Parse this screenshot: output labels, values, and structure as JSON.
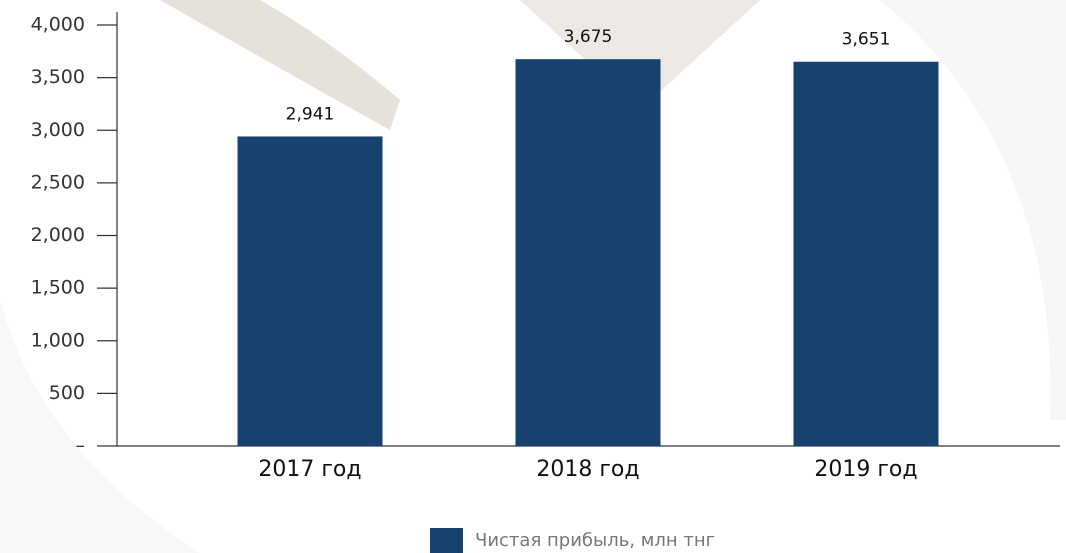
{
  "chart_data": {
    "type": "bar",
    "categories": [
      "2017 год",
      "2018 год",
      "2019 год"
    ],
    "series": [
      {
        "name": "Чистая прибыль, млн тнг",
        "color": "#17416f",
        "values": [
          2941,
          3675,
          3651
        ],
        "value_labels": [
          "2,941",
          "3,675",
          "3,651"
        ]
      }
    ],
    "ylim": [
      0,
      4000
    ],
    "yticks": [
      {
        "value": 0,
        "label": "–"
      },
      500,
      {
        "value": 1000,
        "label": "1,000"
      },
      {
        "value": 1500,
        "label": "1,500"
      },
      {
        "value": 2000,
        "label": "2,000"
      },
      {
        "value": 2500,
        "label": "2,500"
      },
      {
        "value": 3000,
        "label": "3,000"
      },
      {
        "value": 3500,
        "label": "3,500"
      },
      {
        "value": 4000,
        "label": "4,000"
      }
    ],
    "legend": "bottom"
  }
}
